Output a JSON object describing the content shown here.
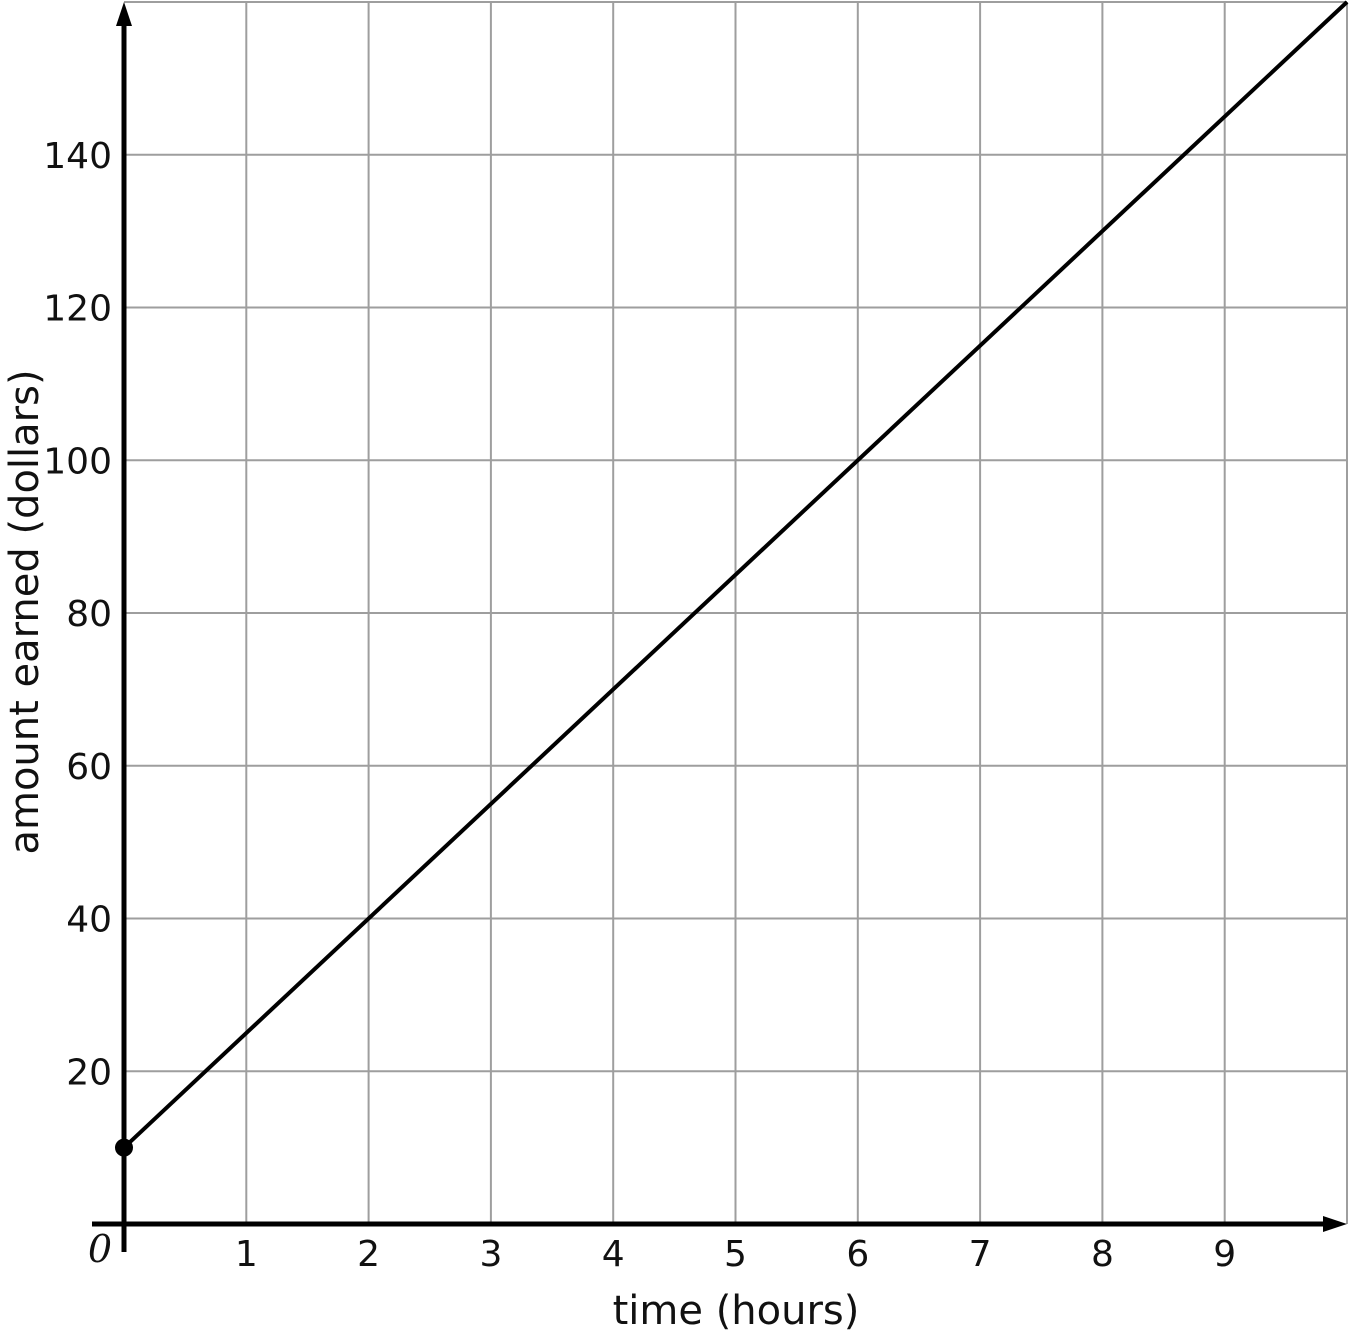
{
  "chart_data": {
    "type": "line",
    "title": "",
    "xlabel": "time (hours)",
    "ylabel": "amount earned (dollars)",
    "xlim": [
      0,
      10
    ],
    "ylim": [
      0,
      160
    ],
    "grid": true,
    "origin_label": "0",
    "x_ticks": [
      "1",
      "2",
      "3",
      "4",
      "5",
      "6",
      "7",
      "8",
      "9"
    ],
    "x_tick_values": [
      1,
      2,
      3,
      4,
      5,
      6,
      7,
      8,
      9
    ],
    "y_ticks": [
      "20",
      "40",
      "60",
      "80",
      "100",
      "120",
      "140"
    ],
    "y_tick_values": [
      20,
      40,
      60,
      80,
      100,
      120,
      140
    ],
    "series": [
      {
        "x": [
          0,
          10
        ],
        "y": [
          10,
          160
        ],
        "start_point_marked": true
      }
    ],
    "colors": {
      "line": "#000000",
      "grid": "#9e9e9e",
      "axis": "#000000"
    }
  }
}
